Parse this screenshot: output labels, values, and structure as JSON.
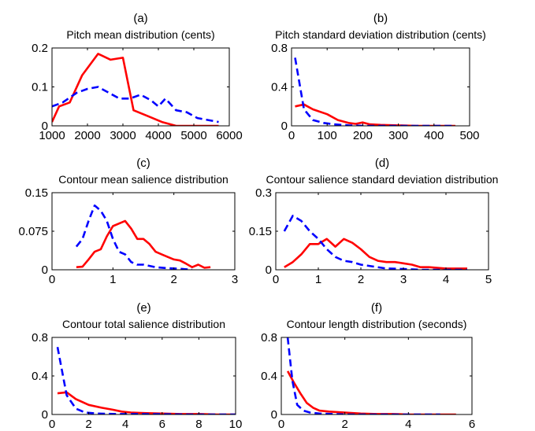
{
  "chart_data": [
    {
      "letter": "(a)",
      "title": "Pitch mean distribution (cents)",
      "type": "line",
      "xlim": [
        1000,
        6000
      ],
      "ylim": [
        0,
        0.2
      ],
      "xticks": [
        1000,
        2000,
        3000,
        4000,
        5000,
        6000
      ],
      "xtick_labels": [
        "1000",
        "2000",
        "3000",
        "4000",
        "5000",
        "6000"
      ],
      "yticks": [
        0,
        0.1,
        0.2
      ],
      "ytick_labels": [
        "0",
        "0.1",
        "0.2"
      ],
      "series": [
        {
          "color": "#ff0000",
          "style": "solid",
          "x": [
            1000,
            1200,
            1500,
            1850,
            2300,
            2650,
            3000,
            3300,
            3700,
            4100,
            4500,
            4700,
            5700
          ],
          "y": [
            0.01,
            0.05,
            0.06,
            0.13,
            0.185,
            0.17,
            0.175,
            0.04,
            0.025,
            0.01,
            0,
            0,
            0
          ]
        },
        {
          "color": "#0000ff",
          "style": "dashed",
          "x": [
            1000,
            1300,
            1700,
            2000,
            2300,
            2600,
            2900,
            3200,
            3500,
            3800,
            4000,
            4200,
            4500,
            4800,
            5100,
            5400,
            5700
          ],
          "y": [
            0.05,
            0.06,
            0.085,
            0.095,
            0.1,
            0.085,
            0.07,
            0.07,
            0.08,
            0.065,
            0.05,
            0.07,
            0.04,
            0.035,
            0.02,
            0.015,
            0.01
          ]
        }
      ]
    },
    {
      "letter": "(b)",
      "title": "Pitch standard deviation distribution (cents)",
      "type": "line",
      "xlim": [
        0,
        500
      ],
      "ylim": [
        0,
        0.8
      ],
      "xticks": [
        0,
        100,
        200,
        300,
        400,
        500
      ],
      "xtick_labels": [
        "0",
        "100",
        "200",
        "300",
        "400",
        "500"
      ],
      "yticks": [
        0,
        0.4,
        0.8
      ],
      "ytick_labels": [
        "0",
        "0.4",
        "0.8"
      ],
      "series": [
        {
          "color": "#ff0000",
          "style": "solid",
          "x": [
            10,
            35,
            60,
            100,
            130,
            160,
            180,
            200,
            220,
            250,
            300,
            350,
            400,
            460
          ],
          "y": [
            0.2,
            0.22,
            0.17,
            0.12,
            0.06,
            0.03,
            0.02,
            0.035,
            0.015,
            0.01,
            0.005,
            0,
            0,
            0
          ]
        },
        {
          "color": "#0000ff",
          "style": "dashed",
          "x": [
            10,
            35,
            60,
            90,
            120,
            160,
            200,
            260,
            320,
            400,
            460
          ],
          "y": [
            0.7,
            0.17,
            0.06,
            0.03,
            0.015,
            0.005,
            0,
            0,
            0,
            0,
            0
          ]
        }
      ]
    },
    {
      "letter": "(c)",
      "title": "Contour mean salience distribution",
      "type": "line",
      "xlim": [
        0,
        3
      ],
      "ylim": [
        0,
        0.15
      ],
      "xticks": [
        0,
        1,
        2,
        3
      ],
      "xtick_labels": [
        "0",
        "1",
        "2",
        "3"
      ],
      "yticks": [
        0,
        0.075,
        0.15
      ],
      "ytick_labels": [
        "0",
        "0.075",
        "0.15"
      ],
      "series": [
        {
          "color": "#ff0000",
          "style": "solid",
          "x": [
            0.4,
            0.5,
            0.6,
            0.7,
            0.8,
            0.9,
            1.0,
            1.1,
            1.2,
            1.3,
            1.4,
            1.5,
            1.6,
            1.7,
            1.8,
            1.9,
            2.0,
            2.1,
            2.2,
            2.3,
            2.4,
            2.5,
            2.6
          ],
          "y": [
            0.005,
            0.006,
            0.02,
            0.035,
            0.04,
            0.065,
            0.085,
            0.09,
            0.095,
            0.08,
            0.06,
            0.06,
            0.05,
            0.035,
            0.03,
            0.025,
            0.02,
            0.018,
            0.012,
            0.005,
            0.01,
            0.004,
            0.005
          ]
        },
        {
          "color": "#0000ff",
          "style": "dashed",
          "x": [
            0.4,
            0.5,
            0.6,
            0.7,
            0.8,
            0.9,
            1.0,
            1.1,
            1.2,
            1.3,
            1.4,
            1.5,
            1.7,
            1.9,
            2.1,
            2.3
          ],
          "y": [
            0.045,
            0.06,
            0.095,
            0.125,
            0.115,
            0.095,
            0.06,
            0.035,
            0.03,
            0.015,
            0.01,
            0.01,
            0.005,
            0.003,
            0.002,
            0
          ]
        }
      ]
    },
    {
      "letter": "(d)",
      "title": "Contour salience standard deviation distribution",
      "type": "line",
      "xlim": [
        0,
        5
      ],
      "ylim": [
        0,
        0.3
      ],
      "xticks": [
        0,
        1,
        2,
        3,
        4,
        5
      ],
      "xtick_labels": [
        "0",
        "1",
        "2",
        "3",
        "4",
        "5"
      ],
      "yticks": [
        0,
        0.15,
        0.3
      ],
      "ytick_labels": [
        "0",
        "0.15",
        "0.3"
      ],
      "series": [
        {
          "color": "#ff0000",
          "style": "solid",
          "x": [
            0.2,
            0.4,
            0.6,
            0.8,
            1.0,
            1.2,
            1.4,
            1.6,
            1.8,
            2.0,
            2.2,
            2.4,
            2.6,
            2.8,
            3.0,
            3.2,
            3.4,
            3.6,
            4.0,
            4.5
          ],
          "y": [
            0.01,
            0.03,
            0.06,
            0.1,
            0.1,
            0.12,
            0.09,
            0.12,
            0.105,
            0.08,
            0.05,
            0.035,
            0.03,
            0.03,
            0.025,
            0.02,
            0.01,
            0.01,
            0.005,
            0.005
          ]
        },
        {
          "color": "#0000ff",
          "style": "dashed",
          "x": [
            0.2,
            0.4,
            0.6,
            0.8,
            1.0,
            1.2,
            1.4,
            1.6,
            1.8,
            2.0,
            2.2,
            2.6,
            3.0,
            3.4,
            4.0,
            4.5
          ],
          "y": [
            0.15,
            0.21,
            0.19,
            0.15,
            0.12,
            0.08,
            0.05,
            0.035,
            0.03,
            0.02,
            0.015,
            0.005,
            0.003,
            0,
            0,
            0
          ]
        }
      ]
    },
    {
      "letter": "(e)",
      "title": "Contour total salience distribution",
      "type": "line",
      "xlim": [
        0,
        10
      ],
      "ylim": [
        0,
        0.8
      ],
      "xticks": [
        0,
        2,
        4,
        6,
        8,
        10
      ],
      "xtick_labels": [
        "0",
        "2",
        "4",
        "6",
        "8",
        "10"
      ],
      "yticks": [
        0,
        0.4,
        0.8
      ],
      "ytick_labels": [
        "0",
        "0.4",
        "0.8"
      ],
      "series": [
        {
          "color": "#ff0000",
          "style": "solid",
          "x": [
            0.3,
            0.8,
            1.3,
            2.0,
            2.7,
            3.3,
            3.8,
            4.3,
            5.0,
            6.0,
            7.0,
            8.0,
            9.0,
            10.0
          ],
          "y": [
            0.22,
            0.23,
            0.16,
            0.1,
            0.07,
            0.05,
            0.03,
            0.02,
            0.015,
            0.01,
            0.005,
            0.005,
            0,
            0
          ]
        },
        {
          "color": "#0000ff",
          "style": "dashed",
          "x": [
            0.3,
            0.8,
            1.3,
            1.8,
            2.5,
            3.5,
            4.5,
            6.0,
            7.5,
            9.0,
            10.0
          ],
          "y": [
            0.7,
            0.2,
            0.06,
            0.02,
            0.01,
            0.005,
            0.005,
            0.003,
            0,
            0,
            0
          ]
        }
      ]
    },
    {
      "letter": "(f)",
      "title": "Contour length distribution (seconds)",
      "type": "line",
      "xlim": [
        0,
        6
      ],
      "ylim": [
        0,
        0.8
      ],
      "xticks": [
        0,
        2,
        4,
        6
      ],
      "xtick_labels": [
        "0",
        "2",
        "4",
        "6"
      ],
      "yticks": [
        0,
        0.4,
        0.8
      ],
      "ytick_labels": [
        "0",
        "0.4",
        "0.8"
      ],
      "series": [
        {
          "color": "#ff0000",
          "style": "solid",
          "x": [
            0.2,
            0.4,
            0.6,
            0.8,
            1.0,
            1.2,
            1.5,
            2.0,
            2.5,
            3.0,
            3.5,
            4.0,
            4.5,
            5.0,
            5.5
          ],
          "y": [
            0.45,
            0.33,
            0.22,
            0.12,
            0.07,
            0.04,
            0.03,
            0.02,
            0.01,
            0.005,
            0.005,
            0,
            0,
            0,
            0
          ]
        },
        {
          "color": "#0000ff",
          "style": "dashed",
          "x": [
            0.2,
            0.35,
            0.5,
            0.7,
            0.9,
            1.2,
            1.6,
            2.0,
            3.0,
            4.0,
            5.0
          ],
          "y": [
            0.8,
            0.35,
            0.1,
            0.04,
            0.02,
            0.01,
            0.005,
            0,
            0,
            0,
            0
          ]
        }
      ]
    }
  ]
}
